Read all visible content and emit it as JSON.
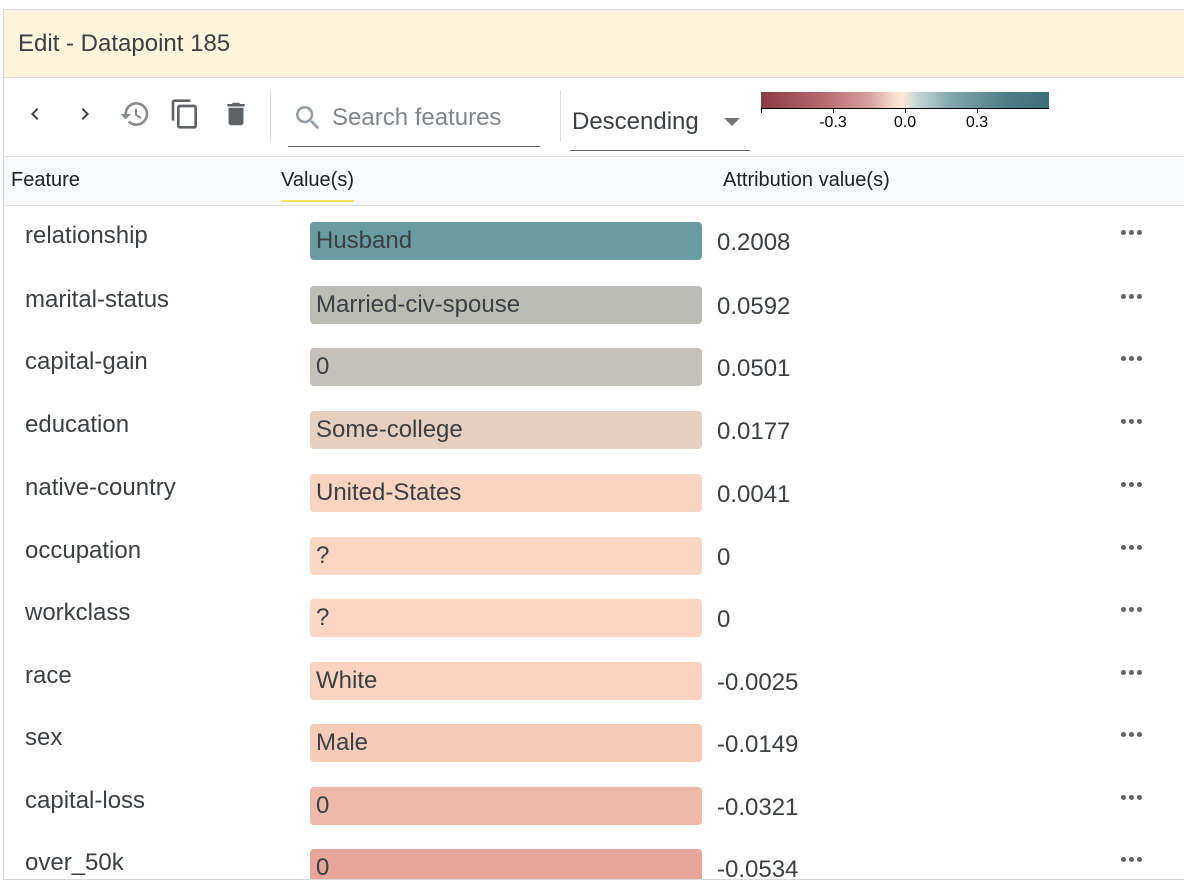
{
  "panel": {
    "title": "Edit - Datapoint 185"
  },
  "toolbar": {
    "search_placeholder": "Search features",
    "sort_value": "Descending",
    "legend_ticks": [
      "-0.3",
      "0.0",
      "0.3"
    ]
  },
  "table": {
    "headers": {
      "feature": "Feature",
      "values": "Value(s)",
      "attribution": "Attribution value(s)"
    },
    "rows": [
      {
        "feature": "relationship",
        "value": "Husband",
        "attribution": "0.2008",
        "color": "#6a9aa2"
      },
      {
        "feature": "marital-status",
        "value": "Married-civ-spouse",
        "attribution": "0.0592",
        "color": "#babcb5"
      },
      {
        "feature": "capital-gain",
        "value": "0",
        "attribution": "0.0501",
        "color": "#c3c1b9"
      },
      {
        "feature": "education",
        "value": "Some-college",
        "attribution": "0.0177",
        "color": "#e7cfbf"
      },
      {
        "feature": "native-country",
        "value": "United-States",
        "attribution": "0.0041",
        "color": "#f8d4c1"
      },
      {
        "feature": "occupation",
        "value": "?",
        "attribution": "0",
        "color": "#fbd6c3"
      },
      {
        "feature": "workclass",
        "value": "?",
        "attribution": "0",
        "color": "#fbd6c3"
      },
      {
        "feature": "race",
        "value": "White",
        "attribution": "-0.0025",
        "color": "#fad4c1"
      },
      {
        "feature": "sex",
        "value": "Male",
        "attribution": "-0.0149",
        "color": "#f6ccb9"
      },
      {
        "feature": "capital-loss",
        "value": "0",
        "attribution": "-0.0321",
        "color": "#efb9aa"
      },
      {
        "feature": "over_50k",
        "value": "0",
        "attribution": "-0.0534",
        "color": "#e8a69b"
      }
    ]
  }
}
